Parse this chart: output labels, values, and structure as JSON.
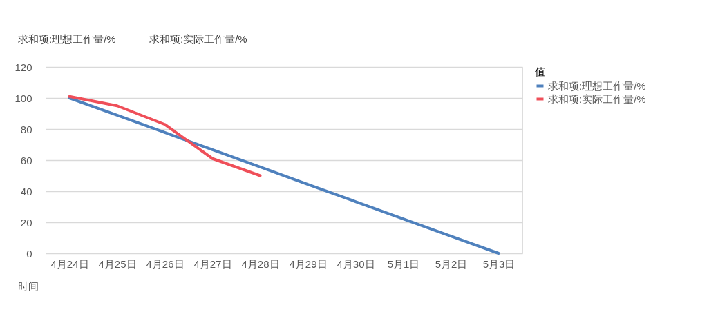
{
  "chart_data": {
    "type": "line",
    "categories": [
      "4月24日",
      "4月25日",
      "4月26日",
      "4月27日",
      "4月28日",
      "4月29日",
      "4月30日",
      "5月1日",
      "5月2日",
      "5月3日"
    ],
    "series": [
      {
        "name": "求和项:理想工作量/%",
        "color": "#4f81bd",
        "values": [
          100,
          88.9,
          77.8,
          66.7,
          55.6,
          44.4,
          33.3,
          22.2,
          11.1,
          0
        ]
      },
      {
        "name": "求和项:实际工作量/%",
        "color": "#ef4f59",
        "values": [
          101,
          95,
          83,
          61,
          50,
          null,
          null,
          null,
          null,
          null
        ]
      }
    ],
    "legend_title": "值",
    "legend": "right",
    "ylim": [
      0,
      120
    ],
    "yticks": [
      0,
      20,
      40,
      60,
      80,
      100,
      120
    ],
    "grid": "y",
    "marker": "none",
    "line_style": "solid",
    "annotations": [
      "求和项:理想工作量/%",
      "求和项:实际工作量/%",
      "时间"
    ]
  }
}
